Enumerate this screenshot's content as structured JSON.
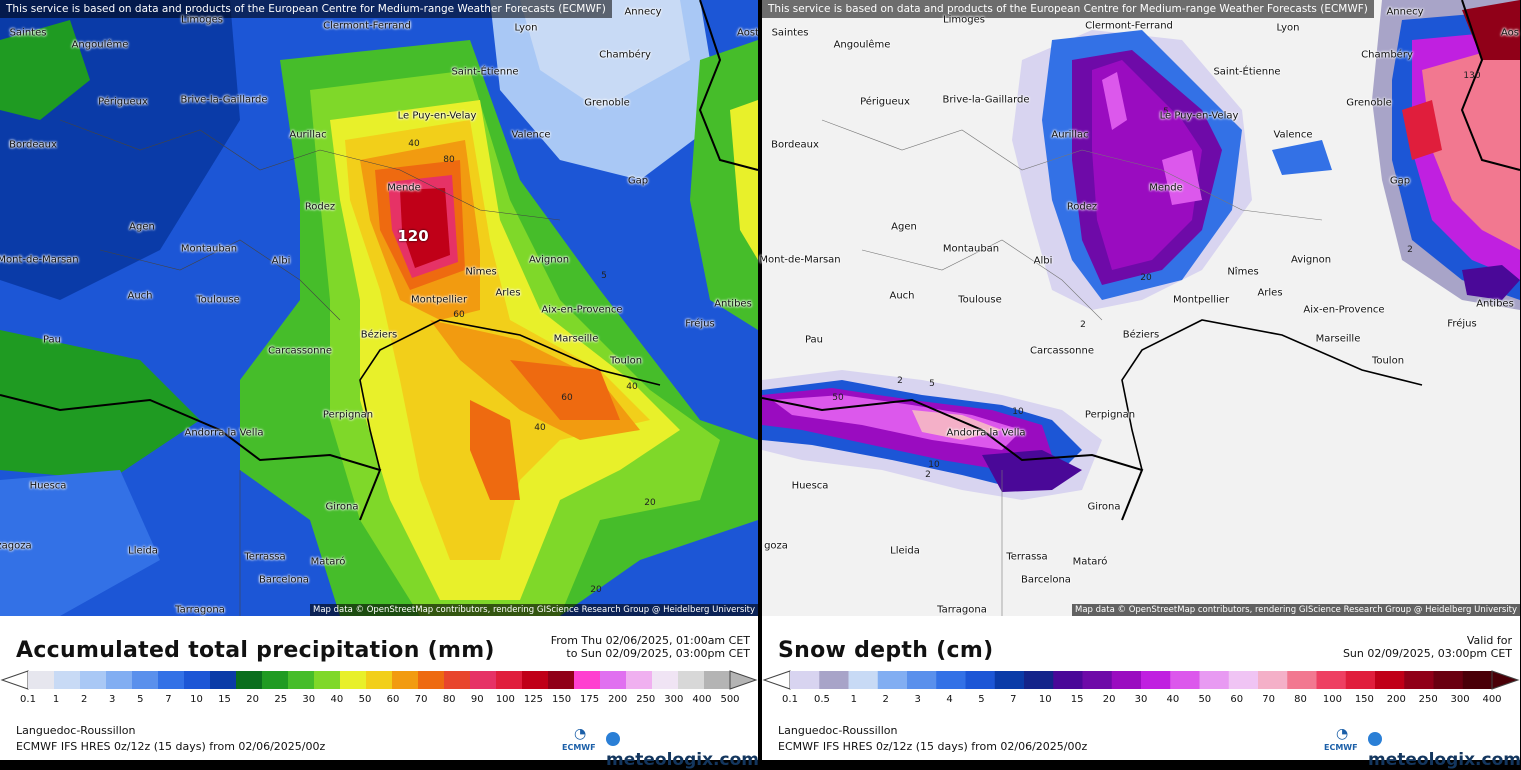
{
  "attribution_top": "This service is based on data and products of the European Centre for Medium-range Weather Forecasts (ECMWF)",
  "attribution_bottom": "Map data © OpenStreetMap contributors, rendering GIScience Research Group @ Heidelberg University",
  "region": "Languedoc-Roussillon",
  "model": "ECMWF IFS HRES 0z/12z (15 days) from 02/06/2025/00z",
  "ecmwf_logo_text": "ECMWF",
  "brand": "meteologix.com",
  "colors": {
    "precip_max": "#a0001c",
    "snow_max": "#a0001c"
  },
  "left_panel": {
    "title": "Accumulated total precipitation (mm)",
    "period_line1": "From Thu 02/06/2025, 01:00am CET",
    "period_line2": "to Sun 02/09/2025, 03:00pm CET",
    "max_label": "120",
    "legend_ticks": [
      "0.1",
      "1",
      "2",
      "3",
      "5",
      "7",
      "10",
      "15",
      "20",
      "25",
      "30",
      "40",
      "50",
      "60",
      "70",
      "80",
      "90",
      "100",
      "125",
      "150",
      "175",
      "200",
      "250",
      "300",
      "400",
      "500"
    ],
    "legend_colors": [
      "#e6e6ee",
      "#c8daf5",
      "#a9c8f5",
      "#82aef2",
      "#5a90ec",
      "#3371e6",
      "#1c56d6",
      "#0a3ba8",
      "#0a6e1e",
      "#1f9b22",
      "#46bd2a",
      "#7fd829",
      "#e8f02a",
      "#f2cf1a",
      "#f29b10",
      "#ee6a10",
      "#e8452c",
      "#e63266",
      "#e01e3c",
      "#c00018",
      "#900018",
      "#ff40d0",
      "#e070f0",
      "#f0b0f0",
      "#f0e4f4",
      "#d8d8d8",
      "#b4b4b4"
    ],
    "contour_labels": [
      "40",
      "80",
      "60",
      "40",
      "60",
      "40",
      "20",
      "20",
      "5"
    ],
    "cities": [
      "Saintes",
      "Angoulême",
      "Limoges",
      "Clermont-Ferrand",
      "Lyon",
      "Annecy",
      "Aost",
      "Chambéry",
      "Périgueux",
      "Brive-la-Gaillarde",
      "Saint-Étienne",
      "Grenoble",
      "Bordeaux",
      "Aurillac",
      "Le Puy-en-Velay",
      "Valence",
      "Mende",
      "Gap",
      "Agen",
      "Rodez",
      "Mont-de-Marsan",
      "Montauban",
      "Albi",
      "Nîmes",
      "Avignon",
      "Auch",
      "Toulouse",
      "Arles",
      "Montpellier",
      "Aix-en-Provence",
      "Antibes",
      "Fréjus",
      "Pau",
      "Carcassonne",
      "Béziers",
      "Marseille",
      "Toulon",
      "Andorra la Vella",
      "Perpignan",
      "Huesca",
      "Girona",
      "Lleida",
      "Terrassa",
      "Mataró",
      "Barcelona",
      "Tarragona",
      "zagoza"
    ]
  },
  "right_panel": {
    "title": "Snow depth (cm)",
    "valid_line1": "Valid for",
    "valid_line2": "Sun 02/09/2025, 03:00pm CET",
    "legend_ticks": [
      "0.1",
      "0.5",
      "1",
      "2",
      "3",
      "4",
      "5",
      "7",
      "10",
      "15",
      "20",
      "30",
      "40",
      "50",
      "60",
      "70",
      "80",
      "100",
      "150",
      "200",
      "250",
      "300",
      "400"
    ],
    "legend_colors": [
      "#d8d4f0",
      "#a8a4c8",
      "#c8daf5",
      "#82aef2",
      "#5a90ec",
      "#3371e6",
      "#1c56d6",
      "#0a3ba8",
      "#14248a",
      "#4a0898",
      "#6e0aa8",
      "#9a0cc0",
      "#c020e0",
      "#dc58ec",
      "#e89af2",
      "#f0c4f4",
      "#f4b0c8",
      "#f27890",
      "#ee4062",
      "#e01e3c",
      "#c00018",
      "#900018",
      "#6a0010",
      "#4a0008"
    ],
    "contour_labels": [
      "5",
      "2",
      "2",
      "2",
      "10",
      "20",
      "130",
      "5",
      "10",
      "50",
      "5",
      "2"
    ],
    "cities": [
      "Saintes",
      "Angoulême",
      "Limoges",
      "Clermont-Ferrand",
      "Lyon",
      "Annecy",
      "Aos",
      "Chambéry",
      "Périgueux",
      "Brive-la-Gaillarde",
      "Saint-Étienne",
      "Grenoble",
      "Bordeaux",
      "Aurillac",
      "Le Puy-en-Velay",
      "Valence",
      "Mende",
      "Gap",
      "Agen",
      "Rodez",
      "Mont-de-Marsan",
      "Montauban",
      "Albi",
      "Nîmes",
      "Avignon",
      "Auch",
      "Toulouse",
      "Arles",
      "Montpellier",
      "Aix-en-Provence",
      "Antibes",
      "Fréjus",
      "Pau",
      "Carcassonne",
      "Béziers",
      "Marseille",
      "Toulon",
      "Andorra la Vella",
      "Perpignan",
      "Huesca",
      "Girona",
      "Lleida",
      "Terrassa",
      "Mataró",
      "Barcelona",
      "Tarragona",
      "goza"
    ]
  }
}
